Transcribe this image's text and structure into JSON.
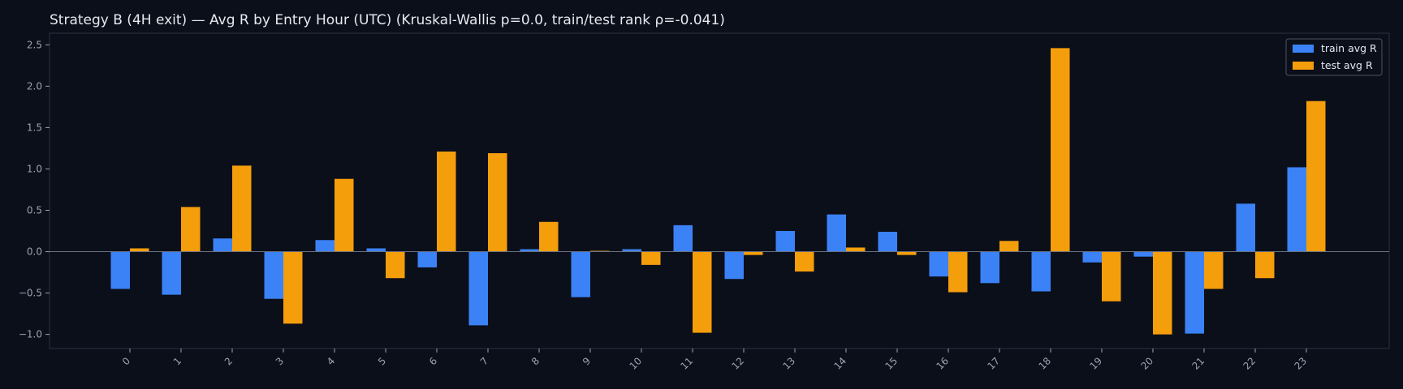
{
  "chart_data": {
    "type": "bar",
    "title": "Strategy B (4H exit) — Avg R by Entry Hour (UTC) (Kruskal-Wallis p=0.0, train/test rank ρ=-0.041)",
    "xlabel": "",
    "ylabel": "",
    "categories": [
      "0",
      "1",
      "2",
      "3",
      "4",
      "5",
      "6",
      "7",
      "8",
      "9",
      "10",
      "11",
      "12",
      "13",
      "14",
      "15",
      "16",
      "17",
      "18",
      "19",
      "20",
      "21",
      "22",
      "23"
    ],
    "series": [
      {
        "name": "train avg R",
        "color": "#3b82f6",
        "values": [
          -0.45,
          -0.52,
          0.16,
          -0.57,
          0.14,
          0.04,
          -0.19,
          -0.89,
          0.03,
          -0.55,
          0.03,
          0.32,
          -0.33,
          0.25,
          0.45,
          0.24,
          -0.3,
          -0.38,
          -0.48,
          -0.13,
          -0.06,
          -0.99,
          0.58,
          1.02
        ]
      },
      {
        "name": "test avg R",
        "color": "#f59e0b",
        "values": [
          0.04,
          0.54,
          1.04,
          -0.87,
          0.88,
          -0.32,
          1.21,
          1.19,
          0.36,
          0.01,
          -0.16,
          -0.98,
          -0.04,
          -0.24,
          0.05,
          -0.04,
          -0.49,
          0.13,
          2.46,
          -0.6,
          -1.0,
          -0.45,
          -0.32,
          1.82
        ]
      }
    ],
    "yticks": [
      -1.0,
      -0.5,
      0.0,
      0.5,
      1.0,
      1.5,
      2.0,
      2.5
    ],
    "ytick_labels": [
      "−1.0",
      "−0.5",
      "0.0",
      "0.5",
      "1.0",
      "1.5",
      "2.0",
      "2.5"
    ],
    "ylim": [
      -1.17,
      2.64
    ],
    "grid": false,
    "zero_line": true,
    "legend_position": "top-right",
    "colors": {
      "background": "#0b0f1a",
      "plot_border": "#2a3140",
      "zero_line": "#6b7280",
      "tick_text": "#9aa3b2",
      "title_text": "#e6e9ef",
      "legend_bg": "#0b0f1a",
      "legend_border": "#4b5563"
    }
  }
}
